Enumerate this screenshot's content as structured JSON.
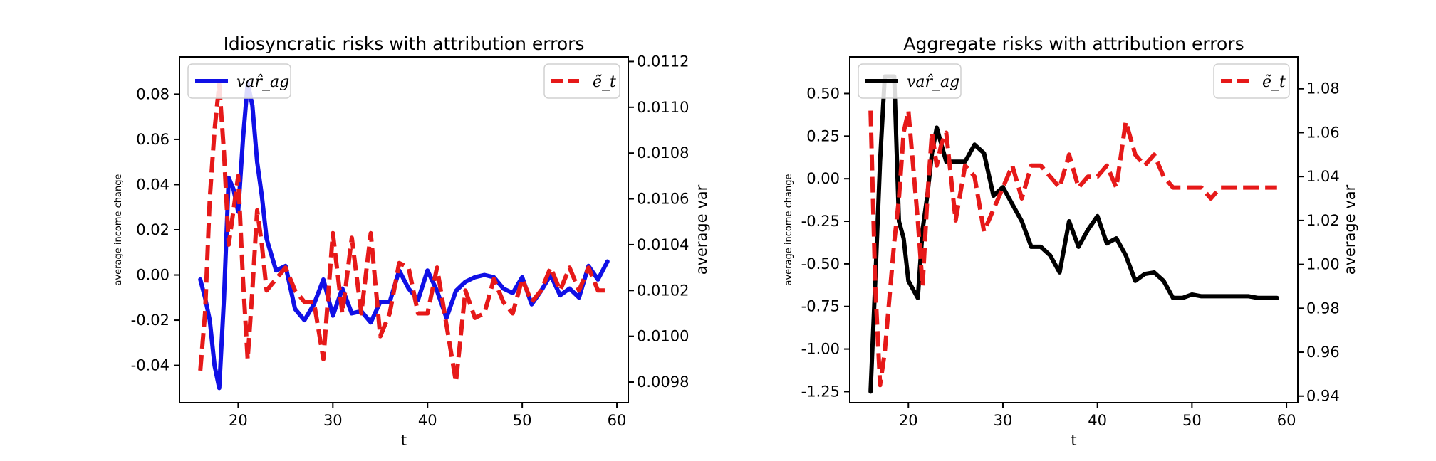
{
  "chart_data": [
    {
      "type": "line",
      "title": "Idiosyncratic risks with attribution errors",
      "xlabel": "t",
      "ylabel_left": "average income change",
      "ylabel_right": "average var",
      "xlim": [
        13.8,
        61.2
      ],
      "ylim_left": [
        -0.0565,
        0.0965
      ],
      "ylim_right": [
        0.00971,
        0.01122
      ],
      "xticks": [
        20,
        30,
        40,
        50,
        60
      ],
      "yticks_left": [
        -0.04,
        -0.02,
        0.0,
        0.02,
        0.04,
        0.06,
        0.08
      ],
      "yticks_left_labels": [
        "-0.04",
        "-0.02",
        "0.00",
        "0.02",
        "0.04",
        "0.06",
        "0.08"
      ],
      "yticks_right": [
        0.0098,
        0.01,
        0.0102,
        0.0104,
        0.0106,
        0.0108,
        0.011,
        0.0112
      ],
      "yticks_right_labels": [
        "0.0098",
        "0.0100",
        "0.0102",
        "0.0104",
        "0.0106",
        "0.0108",
        "0.0110",
        "0.0112"
      ],
      "series": [
        {
          "name": "var̂_ag",
          "axis": "left",
          "color": "#1010e6",
          "style": "solid",
          "x": [
            16,
            16.5,
            17,
            17.5,
            18,
            18.5,
            19,
            19.5,
            20,
            20.5,
            21,
            21.5,
            22,
            22.5,
            23,
            24,
            25,
            26,
            27,
            28,
            29,
            30,
            31,
            32,
            33,
            34,
            35,
            36,
            37,
            38,
            39,
            40,
            41,
            42,
            43,
            44,
            45,
            46,
            47,
            48,
            49,
            50,
            51,
            52,
            53,
            54,
            55,
            56,
            57,
            58,
            59
          ],
          "y": [
            -0.002,
            -0.01,
            -0.02,
            -0.04,
            -0.05,
            -0.01,
            0.043,
            0.038,
            0.028,
            0.06,
            0.085,
            0.075,
            0.05,
            0.035,
            0.016,
            0.002,
            0.004,
            -0.015,
            -0.02,
            -0.013,
            -0.002,
            -0.018,
            -0.006,
            -0.017,
            -0.016,
            -0.021,
            -0.012,
            -0.012,
            0.002,
            -0.006,
            -0.011,
            0.002,
            -0.007,
            -0.019,
            -0.007,
            -0.003,
            -0.001,
            0.0,
            -0.001,
            -0.006,
            -0.008,
            -0.001,
            -0.013,
            -0.007,
            0.0,
            -0.009,
            -0.006,
            -0.01,
            0.004,
            -0.002,
            0.006
          ]
        },
        {
          "name": "ẽ_t",
          "axis": "right",
          "color": "#e61919",
          "style": "dashed",
          "x": [
            16,
            16.5,
            17,
            17.5,
            18,
            18.5,
            19,
            19.5,
            20,
            20.5,
            21,
            21.5,
            22,
            22.5,
            23,
            24,
            25,
            26,
            27,
            28,
            29,
            30,
            31,
            32,
            33,
            34,
            35,
            36,
            37,
            38,
            39,
            40,
            41,
            42,
            43,
            44,
            45,
            46,
            47,
            48,
            49,
            50,
            51,
            52,
            53,
            54,
            55,
            56,
            57,
            58,
            59
          ],
          "y": [
            0.00985,
            0.0101,
            0.0106,
            0.0109,
            0.0111,
            0.0108,
            0.0104,
            0.01055,
            0.0107,
            0.01025,
            0.0099,
            0.0102,
            0.01055,
            0.0104,
            0.0102,
            0.01025,
            0.0103,
            0.0102,
            0.01015,
            0.01015,
            0.0099,
            0.01045,
            0.0101,
            0.01043,
            0.0101,
            0.01045,
            0.01,
            0.0101,
            0.01032,
            0.0103,
            0.0101,
            0.0101,
            0.0103,
            0.01005,
            0.0098,
            0.0102,
            0.01008,
            0.0101,
            0.01025,
            0.01015,
            0.0101,
            0.01025,
            0.01015,
            0.0102,
            0.0103,
            0.0102,
            0.0103,
            0.0102,
            0.0103,
            0.0102,
            0.0102
          ]
        }
      ]
    },
    {
      "type": "line",
      "title": "Aggregate risks with attribution errors",
      "xlabel": "t",
      "ylabel_left": "average income change",
      "ylabel_right": "average var",
      "xlim": [
        13.8,
        61.2
      ],
      "ylim_left": [
        -1.315,
        0.715
      ],
      "ylim_right": [
        0.937,
        1.0945
      ],
      "xticks": [
        20,
        30,
        40,
        50,
        60
      ],
      "yticks_left": [
        -1.25,
        -1.0,
        -0.75,
        -0.5,
        -0.25,
        0.0,
        0.25,
        0.5
      ],
      "yticks_left_labels": [
        "-1.25",
        "-1.00",
        "-0.75",
        "-0.50",
        "-0.25",
        "0.00",
        "0.25",
        "0.50"
      ],
      "yticks_right": [
        0.94,
        0.96,
        0.98,
        1.0,
        1.02,
        1.04,
        1.06,
        1.08
      ],
      "yticks_right_labels": [
        "0.94",
        "0.96",
        "0.98",
        "1.00",
        "1.02",
        "1.04",
        "1.06",
        "1.08"
      ],
      "series": [
        {
          "name": "var̂_ag",
          "axis": "left",
          "color": "#000000",
          "style": "solid",
          "x": [
            16,
            16.5,
            17,
            17.5,
            18,
            18.5,
            19,
            19.5,
            20,
            21,
            21.5,
            22,
            22.5,
            23,
            23.5,
            24,
            25,
            26,
            27,
            28,
            29,
            30,
            31,
            32,
            33,
            34,
            35,
            36,
            37,
            38,
            39,
            40,
            41,
            42,
            43,
            44,
            45,
            46,
            47,
            48,
            49,
            50,
            51,
            52,
            53,
            54,
            55,
            56,
            57,
            58,
            59
          ],
          "y": [
            -1.25,
            -0.6,
            0.1,
            0.6,
            0.6,
            0.6,
            -0.25,
            -0.35,
            -0.6,
            -0.7,
            -0.3,
            -0.1,
            0.15,
            0.3,
            0.2,
            0.1,
            0.1,
            0.1,
            0.2,
            0.15,
            -0.1,
            -0.05,
            -0.15,
            -0.25,
            -0.4,
            -0.4,
            -0.45,
            -0.55,
            -0.25,
            -0.4,
            -0.3,
            -0.22,
            -0.38,
            -0.35,
            -0.45,
            -0.6,
            -0.56,
            -0.55,
            -0.6,
            -0.7,
            -0.7,
            -0.68,
            -0.69,
            -0.69,
            -0.69,
            -0.69,
            -0.69,
            -0.69,
            -0.7,
            -0.7,
            -0.7
          ]
        },
        {
          "name": "ẽ_t",
          "axis": "right",
          "color": "#e61919",
          "style": "dashed",
          "x": [
            16,
            16.5,
            17,
            17.5,
            18,
            18.5,
            19,
            19.5,
            20,
            21,
            21.5,
            22,
            22.5,
            23,
            23.5,
            24,
            25,
            26,
            27,
            28,
            29,
            30,
            31,
            32,
            33,
            34,
            35,
            36,
            37,
            38,
            39,
            40,
            41,
            42,
            43,
            44,
            45,
            46,
            47,
            48,
            49,
            50,
            51,
            52,
            53,
            54,
            55,
            56,
            57,
            58,
            59
          ],
          "y": [
            1.07,
            0.99,
            0.945,
            0.96,
            0.985,
            1.01,
            1.03,
            1.06,
            1.07,
            1.02,
            0.99,
            1.03,
            1.06,
            1.045,
            1.055,
            1.06,
            1.02,
            1.045,
            1.04,
            1.015,
            1.025,
            1.035,
            1.045,
            1.03,
            1.045,
            1.045,
            1.04,
            1.035,
            1.05,
            1.035,
            1.04,
            1.04,
            1.045,
            1.035,
            1.065,
            1.05,
            1.045,
            1.05,
            1.04,
            1.035,
            1.035,
            1.035,
            1.035,
            1.03,
            1.035,
            1.035,
            1.035,
            1.035,
            1.035,
            1.035,
            1.035
          ]
        }
      ]
    }
  ]
}
